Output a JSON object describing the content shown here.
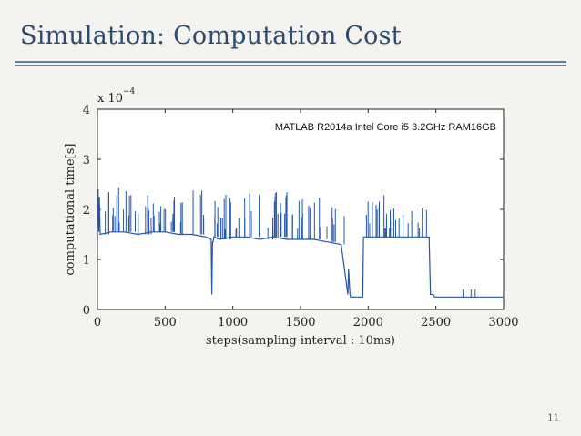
{
  "slide": {
    "title": "Simulation: Computation Cost",
    "page_number": "11"
  },
  "chart_data": {
    "type": "line",
    "title": "",
    "xlabel": "steps(sampling interval : 10ms)",
    "ylabel": "computational time[s]",
    "xlim": [
      0,
      3000
    ],
    "ylim": [
      0,
      4
    ],
    "y_scale_label": "x 10",
    "y_scale_exponent": "−4",
    "xticks": [
      "0",
      "500",
      "1000",
      "1500",
      "2000",
      "2500",
      "3000"
    ],
    "yticks": [
      "0",
      "1",
      "2",
      "3",
      "4"
    ],
    "annotation": "MATLAB R2014a    Intel Core i5 3.2GHz    RAM16GB",
    "grid": false,
    "line_color": "#2356a6",
    "series": [
      {
        "values_note_free": true,
        "x": [
          0,
          5,
          10,
          14,
          20,
          100,
          200,
          300,
          400,
          500,
          600,
          700,
          800,
          840,
          845,
          850,
          855,
          860,
          900,
          1000,
          1100,
          1200,
          1300,
          1400,
          1500,
          1600,
          1700,
          1800,
          1850,
          1855,
          1865,
          1870,
          1900,
          1930,
          1960,
          1965,
          1970,
          2000,
          2100,
          2200,
          2300,
          2400,
          2450,
          2460,
          2480,
          2490,
          2500,
          2600,
          2700,
          2800,
          2900,
          3000
        ],
        "y": [
          1.6,
          2.4,
          1.55,
          2.25,
          1.5,
          1.55,
          1.55,
          1.5,
          1.55,
          1.55,
          1.5,
          1.5,
          1.45,
          1.4,
          0.3,
          1.35,
          1.35,
          1.45,
          1.4,
          1.45,
          1.45,
          1.4,
          1.45,
          1.4,
          1.4,
          1.4,
          1.35,
          1.3,
          0.3,
          0.8,
          0.3,
          0.25,
          0.25,
          0.25,
          0.25,
          1.45,
          1.45,
          1.45,
          1.45,
          1.45,
          1.45,
          1.45,
          1.45,
          0.3,
          0.3,
          0.25,
          0.25,
          0.25,
          0.25,
          0.25,
          0.25,
          0.25
        ]
      }
    ]
  }
}
